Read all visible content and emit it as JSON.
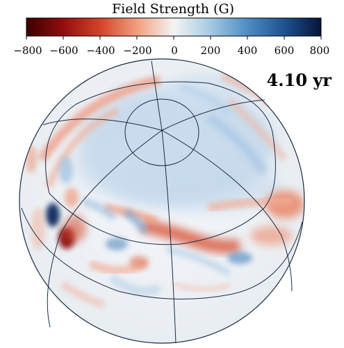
{
  "colorbar": {
    "title": "Field Strength (G)",
    "min": -800,
    "max": 800,
    "ticks": [
      "−800",
      "−600",
      "−400",
      "−200",
      "0",
      "200",
      "400",
      "600",
      "800"
    ],
    "colors": {
      "negative_strong": "#4d0000",
      "negative_mid": "#c8321e",
      "negative_weak": "#f4a583",
      "neutral": "#f2f2f2",
      "positive_weak": "#a6cbe6",
      "positive_mid": "#3d7fba",
      "positive_strong": "#061538"
    }
  },
  "time_label": "4.10 yr",
  "sphere": {
    "grid_line_color": "#1a2a40",
    "background_field": "#eef2f6"
  }
}
